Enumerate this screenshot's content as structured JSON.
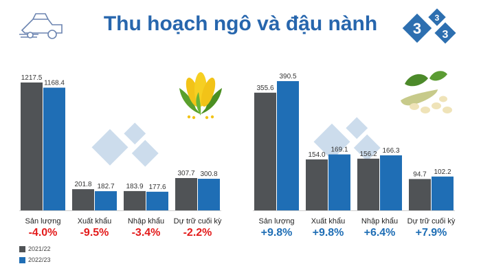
{
  "title": "Thu hoạch ngô và đậu nành",
  "colors": {
    "s2122": "#505356",
    "s2223": "#1f6eb5",
    "negative": "#e31b1b",
    "positive": "#1f6eb5",
    "brand": "#2766ad"
  },
  "icons": {
    "harvester": "combine-harvester-icon",
    "corn": "corn-icon",
    "soybean": "soybean-icon",
    "logo": "333-logo"
  },
  "legend": [
    {
      "label": "2021/22",
      "color": "#505356"
    },
    {
      "label": "2022/23",
      "color": "#1f6eb5"
    }
  ],
  "chart_data": [
    {
      "type": "bar",
      "title": "",
      "categories": [
        "Sản lượng",
        "Xuất khẩu",
        "Nhập khẩu",
        "Dự trữ cuối kỳ"
      ],
      "series": [
        {
          "name": "2021/22",
          "values": [
            1217.5,
            201.8,
            183.9,
            307.7
          ]
        },
        {
          "name": "2022/23",
          "values": [
            1168.4,
            182.7,
            177.6,
            300.8
          ]
        }
      ],
      "changes": [
        "-4.0%",
        "-9.5%",
        "-3.4%",
        "-2.2%"
      ],
      "ylim": [
        0,
        1217.5
      ]
    },
    {
      "type": "bar",
      "title": "",
      "categories": [
        "Sản lượng",
        "Xuất khẩu",
        "Nhập khẩu",
        "Dự trữ cuối kỳ"
      ],
      "series": [
        {
          "name": "2021/22",
          "values": [
            355.6,
            154.0,
            156.2,
            94.7
          ]
        },
        {
          "name": "2022/23",
          "values": [
            390.5,
            169.1,
            166.3,
            102.2
          ]
        }
      ],
      "changes": [
        "+9.8%",
        "+9.8%",
        "+6.4%",
        "+7.9%"
      ],
      "ylim": [
        0,
        390.5
      ]
    }
  ]
}
